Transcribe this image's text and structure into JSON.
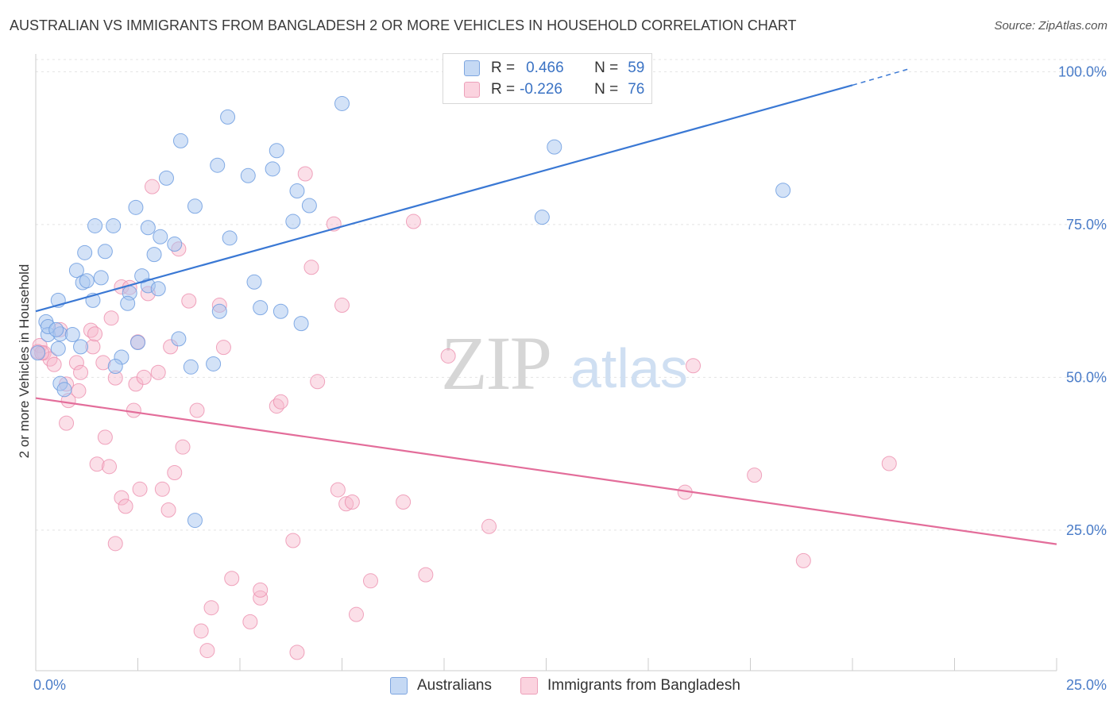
{
  "title": "AUSTRALIAN VS IMMIGRANTS FROM BANGLADESH 2 OR MORE VEHICLES IN HOUSEHOLD CORRELATION CHART",
  "source": "Source: ZipAtlas.com",
  "watermark": {
    "zip": "ZIP",
    "atlas": "atlas"
  },
  "legend": {
    "rows": [
      {
        "r_label": "R =",
        "r_value": "0.466",
        "n_label": "N =",
        "n_value": "59",
        "color": "#a8c6f0"
      },
      {
        "r_label": "R =",
        "r_value": "-0.226",
        "n_label": "N =",
        "n_value": "76",
        "color": "#f7b8cb"
      }
    ]
  },
  "bottom_legend": [
    "Australians",
    "Immigrants from Bangladesh"
  ],
  "colors": {
    "blue_fill": "#a8c6f0",
    "blue_stroke": "#6f9ee0",
    "blue_line": "#3a78d4",
    "pink_fill": "#f7b8cb",
    "pink_stroke": "#ec8fae",
    "pink_line": "#e36d9a",
    "axis_text": "#4a7cc8"
  },
  "chart_data": {
    "type": "scatter",
    "title": "AUSTRALIAN VS IMMIGRANTS FROM BANGLADESH 2 OR MORE VEHICLES IN HOUSEHOLD CORRELATION CHART",
    "xlabel": "",
    "ylabel": "2 or more Vehicles in Household",
    "xlim": [
      0,
      25
    ],
    "ylim": [
      2,
      102
    ],
    "x_tick_labels": [
      "0.0%",
      "25.0%"
    ],
    "y_tick_labels": [
      "100.0%",
      "75.0%",
      "50.0%",
      "25.0%"
    ],
    "y_ticks": [
      100,
      75,
      50,
      25
    ],
    "grid": true,
    "legend_position": "top-center",
    "series": [
      {
        "name": "Australians",
        "color": "#a8c6f0",
        "trend": {
          "x0": 0,
          "y0": 60.8,
          "x1": 20,
          "y1": 97.8,
          "dash_to_x": 21.4,
          "dash_to_y": 100.5
        },
        "points": [
          [
            0.05,
            54.0
          ],
          [
            0.25,
            59.1
          ],
          [
            0.3,
            57.0
          ],
          [
            0.6,
            57.1
          ],
          [
            0.3,
            58.3
          ],
          [
            0.5,
            57.8
          ],
          [
            0.9,
            57.0
          ],
          [
            0.6,
            49.0
          ],
          [
            0.55,
            54.7
          ],
          [
            0.7,
            48.0
          ],
          [
            1.1,
            55.0
          ],
          [
            1.4,
            62.6
          ],
          [
            0.55,
            62.6
          ],
          [
            1.0,
            67.5
          ],
          [
            1.15,
            65.5
          ],
          [
            1.25,
            65.8
          ],
          [
            1.6,
            66.3
          ],
          [
            1.2,
            70.4
          ],
          [
            1.7,
            70.6
          ],
          [
            1.45,
            74.8
          ],
          [
            1.9,
            74.8
          ],
          [
            2.1,
            53.3
          ],
          [
            1.95,
            51.8
          ],
          [
            2.3,
            63.8
          ],
          [
            2.25,
            62.1
          ],
          [
            2.5,
            55.7
          ],
          [
            2.6,
            66.6
          ],
          [
            2.75,
            65.0
          ],
          [
            3.0,
            64.5
          ],
          [
            2.9,
            70.1
          ],
          [
            3.05,
            73.0
          ],
          [
            2.75,
            74.5
          ],
          [
            3.4,
            71.8
          ],
          [
            3.5,
            56.3
          ],
          [
            3.8,
            51.7
          ],
          [
            3.9,
            26.6
          ],
          [
            3.2,
            82.6
          ],
          [
            2.45,
            77.8
          ],
          [
            3.55,
            88.7
          ],
          [
            3.9,
            78.0
          ],
          [
            4.35,
            52.2
          ],
          [
            4.5,
            60.8
          ],
          [
            4.75,
            72.8
          ],
          [
            4.45,
            84.7
          ],
          [
            4.7,
            92.6
          ],
          [
            5.2,
            83.0
          ],
          [
            5.35,
            65.6
          ],
          [
            5.5,
            61.4
          ],
          [
            5.8,
            84.1
          ],
          [
            5.9,
            87.1
          ],
          [
            6.0,
            60.8
          ],
          [
            6.3,
            75.5
          ],
          [
            6.4,
            80.5
          ],
          [
            6.7,
            78.1
          ],
          [
            6.5,
            58.8
          ],
          [
            7.5,
            94.8
          ],
          [
            12.4,
            76.2
          ],
          [
            12.7,
            87.7
          ],
          [
            18.3,
            80.6
          ]
        ]
      },
      {
        "name": "Immigrants from Bangladesh",
        "color": "#f7b8cb",
        "trend": {
          "x0": 0,
          "y0": 46.6,
          "x1": 25,
          "y1": 22.7
        },
        "points": [
          [
            0.1,
            55.2
          ],
          [
            0.2,
            54.0
          ],
          [
            0.35,
            53.0
          ],
          [
            0.45,
            52.1
          ],
          [
            0.6,
            57.8
          ],
          [
            0.75,
            42.5
          ],
          [
            0.75,
            48.9
          ],
          [
            0.8,
            46.2
          ],
          [
            1.0,
            52.4
          ],
          [
            1.05,
            47.8
          ],
          [
            1.1,
            50.8
          ],
          [
            1.35,
            57.7
          ],
          [
            1.4,
            55.0
          ],
          [
            1.45,
            57.1
          ],
          [
            1.5,
            35.8
          ],
          [
            1.7,
            40.2
          ],
          [
            1.65,
            52.4
          ],
          [
            1.8,
            35.4
          ],
          [
            1.85,
            59.7
          ],
          [
            1.95,
            22.8
          ],
          [
            2.1,
            30.3
          ],
          [
            2.2,
            28.9
          ],
          [
            2.1,
            64.8
          ],
          [
            2.3,
            64.7
          ],
          [
            2.4,
            44.6
          ],
          [
            2.45,
            48.9
          ],
          [
            2.5,
            55.8
          ],
          [
            2.55,
            31.7
          ],
          [
            2.65,
            50.0
          ],
          [
            2.75,
            63.7
          ],
          [
            2.85,
            81.2
          ],
          [
            3.0,
            50.8
          ],
          [
            3.1,
            31.7
          ],
          [
            3.25,
            28.3
          ],
          [
            3.3,
            55.0
          ],
          [
            3.4,
            34.4
          ],
          [
            3.5,
            71.0
          ],
          [
            3.6,
            38.6
          ],
          [
            3.75,
            62.5
          ],
          [
            3.95,
            44.6
          ],
          [
            4.05,
            8.5
          ],
          [
            4.2,
            5.3
          ],
          [
            4.3,
            12.3
          ],
          [
            4.5,
            61.8
          ],
          [
            4.6,
            54.9
          ],
          [
            4.8,
            17.1
          ],
          [
            5.25,
            10.0
          ],
          [
            5.5,
            13.9
          ],
          [
            5.5,
            15.2
          ],
          [
            5.9,
            45.3
          ],
          [
            6.0,
            46.0
          ],
          [
            6.3,
            23.3
          ],
          [
            6.4,
            5.0
          ],
          [
            6.6,
            83.3
          ],
          [
            6.75,
            68.0
          ],
          [
            6.9,
            49.3
          ],
          [
            7.3,
            75.1
          ],
          [
            7.4,
            31.6
          ],
          [
            7.5,
            61.8
          ],
          [
            7.6,
            29.3
          ],
          [
            7.75,
            29.6
          ],
          [
            7.85,
            11.2
          ],
          [
            8.2,
            16.7
          ],
          [
            9.0,
            29.6
          ],
          [
            9.25,
            75.5
          ],
          [
            9.55,
            17.7
          ],
          [
            10.1,
            53.5
          ],
          [
            11.1,
            25.6
          ],
          [
            15.9,
            31.2
          ],
          [
            16.1,
            51.9
          ],
          [
            17.6,
            34.0
          ],
          [
            18.8,
            20.0
          ],
          [
            20.9,
            35.9
          ],
          [
            0.05,
            54.2
          ],
          [
            0.15,
            54.0
          ],
          [
            1.95,
            49.9
          ]
        ]
      }
    ]
  }
}
